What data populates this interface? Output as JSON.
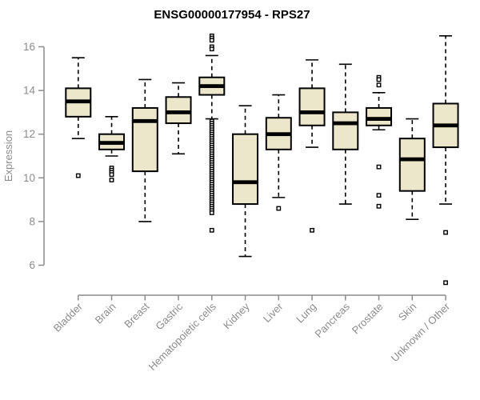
{
  "chart_data": {
    "type": "boxplot",
    "title": "ENSG00000177954 - RPS27",
    "ylabel": "Expression",
    "yticks": [
      6,
      8,
      10,
      12,
      14,
      16
    ],
    "ylim": [
      5.0,
      16.7
    ],
    "grid": false,
    "colors": {
      "box_fill": "#ECE7CB",
      "box_stroke": "#000000",
      "median": "#000000",
      "axis": "#8C8C8C",
      "tick_label": "#8C8C8C",
      "title": "#000000"
    },
    "categories": [
      {
        "label": "Bladder",
        "whislo": 11.8,
        "q1": 12.8,
        "med": 13.5,
        "q3": 14.1,
        "whishi": 15.5,
        "outliers": [
          10.1
        ]
      },
      {
        "label": "Brain",
        "whislo": 11.0,
        "q1": 11.3,
        "med": 11.6,
        "q3": 12.0,
        "whishi": 12.8,
        "outliers": [
          10.45,
          10.35,
          10.25,
          10.15,
          9.9
        ]
      },
      {
        "label": "Breast",
        "whislo": 8.0,
        "q1": 10.3,
        "med": 12.6,
        "q3": 13.2,
        "whishi": 14.5,
        "outliers": []
      },
      {
        "label": "Gastric",
        "whislo": 11.1,
        "q1": 12.5,
        "med": 13.0,
        "q3": 13.7,
        "whishi": 14.35,
        "outliers": []
      },
      {
        "label": "Hematopoietic cells",
        "whislo": 12.7,
        "q1": 13.8,
        "med": 14.2,
        "q3": 14.6,
        "whishi": 15.6,
        "outliers": [
          16.5,
          16.4,
          16.3,
          16.0,
          15.9,
          12.6,
          12.5,
          12.4,
          12.3,
          12.2,
          12.1,
          12.0,
          11.9,
          11.8,
          11.7,
          11.6,
          11.5,
          11.4,
          11.3,
          11.2,
          11.1,
          11.0,
          10.9,
          10.8,
          10.7,
          10.6,
          10.5,
          10.4,
          10.3,
          10.2,
          10.1,
          10.0,
          9.9,
          9.8,
          9.7,
          9.6,
          9.5,
          9.4,
          9.3,
          9.2,
          9.1,
          9.0,
          8.9,
          8.8,
          8.7,
          8.6,
          8.5,
          8.4,
          7.6
        ]
      },
      {
        "label": "Kidney",
        "whislo": 6.4,
        "q1": 8.8,
        "med": 9.8,
        "q3": 12.0,
        "whishi": 13.3,
        "outliers": []
      },
      {
        "label": "Liver",
        "whislo": 9.1,
        "q1": 11.3,
        "med": 12.0,
        "q3": 12.75,
        "whishi": 13.8,
        "outliers": [
          8.6
        ]
      },
      {
        "label": "Lung",
        "whislo": 11.4,
        "q1": 12.4,
        "med": 13.0,
        "q3": 14.1,
        "whishi": 15.4,
        "outliers": [
          7.6
        ]
      },
      {
        "label": "Pancreas",
        "whislo": 8.8,
        "q1": 11.3,
        "med": 12.5,
        "q3": 13.0,
        "whishi": 15.2,
        "outliers": []
      },
      {
        "label": "Prostate",
        "whislo": 12.2,
        "q1": 12.4,
        "med": 12.7,
        "q3": 13.2,
        "whishi": 13.9,
        "outliers": [
          14.6,
          14.5,
          14.25,
          10.5,
          9.2,
          8.7
        ]
      },
      {
        "label": "Skin",
        "whislo": 8.1,
        "q1": 9.4,
        "med": 10.85,
        "q3": 11.8,
        "whishi": 12.7,
        "outliers": []
      },
      {
        "label": "Unknown / Other",
        "whislo": 8.8,
        "q1": 11.4,
        "med": 12.4,
        "q3": 13.4,
        "whishi": 16.5,
        "outliers": [
          7.5,
          5.2
        ]
      }
    ]
  }
}
